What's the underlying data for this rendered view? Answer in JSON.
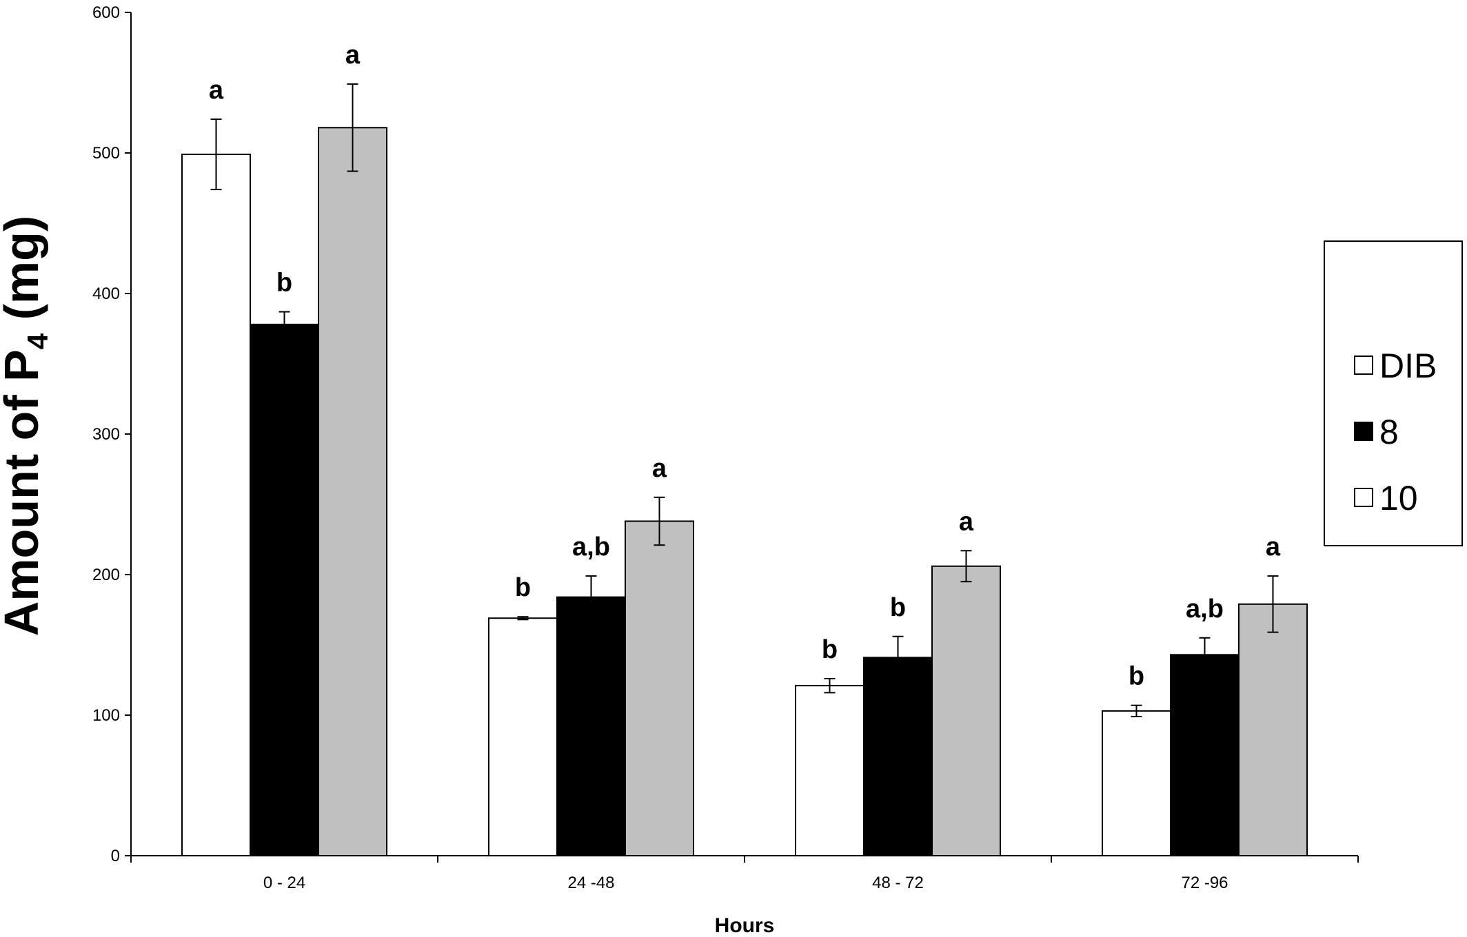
{
  "chart_data": {
    "type": "bar",
    "title": "",
    "xlabel": "Hours",
    "ylabel_main": "Amount of P",
    "ylabel_sub": "4",
    "ylabel_unit": " (mg)",
    "ylim": [
      0,
      600
    ],
    "yticks": [
      0,
      100,
      200,
      300,
      400,
      500,
      600
    ],
    "categories": [
      "0 - 24",
      "24 -48",
      "48 - 72",
      "72 -96"
    ],
    "grid": false,
    "legend_position": "right",
    "series": [
      {
        "name": "DIB",
        "color": "#ffffff",
        "values": [
          499,
          169,
          121,
          103
        ],
        "errors": [
          25,
          1,
          5,
          4
        ],
        "labels": [
          "a",
          "b",
          "b",
          "b"
        ]
      },
      {
        "name": "8",
        "color": "#000000",
        "values": [
          378,
          184,
          141,
          143
        ],
        "errors": [
          9,
          15,
          15,
          12
        ],
        "labels": [
          "b",
          "a,b",
          "b",
          "a,b"
        ]
      },
      {
        "name": "10",
        "color": "#c0c0c0",
        "values": [
          518,
          238,
          206,
          179
        ],
        "errors": [
          31,
          17,
          11,
          20
        ],
        "labels": [
          "a",
          "a",
          "a",
          "a"
        ]
      }
    ],
    "legend_markers": [
      "#ffffff",
      "#000000",
      "#ffffff"
    ]
  }
}
